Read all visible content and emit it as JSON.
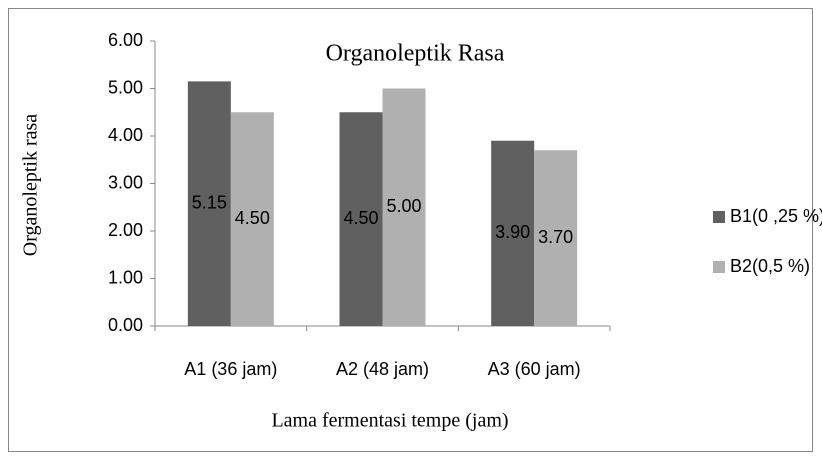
{
  "chart_data": {
    "type": "bar",
    "title": "Organoleptik Rasa",
    "x_label": "Lama fermentasi tempe (jam)",
    "y_label": "Organoleptik rasa",
    "categories": [
      "A1 (36 jam)",
      "A2 (48 jam)",
      "A3 (60 jam)"
    ],
    "series": [
      {
        "name": "B1(0 ,25 %)",
        "color": "#606060",
        "values": [
          5.15,
          4.5,
          3.9
        ],
        "value_labels": [
          "5.15",
          "4.50",
          "3.90"
        ]
      },
      {
        "name": "B2(0,5 %)",
        "color": "#b0b0b0",
        "values": [
          4.5,
          5.0,
          3.7
        ],
        "value_labels": [
          "4.50",
          "5.00",
          "3.70"
        ]
      }
    ],
    "ylim": [
      0,
      6
    ],
    "yticks": [
      {
        "value": 0,
        "label": "0.00"
      },
      {
        "value": 1,
        "label": "1.00"
      },
      {
        "value": 2,
        "label": "2.00"
      },
      {
        "value": 3,
        "label": "3.00"
      },
      {
        "value": 4,
        "label": "4.00"
      },
      {
        "value": 5,
        "label": "5.00"
      },
      {
        "value": 6,
        "label": "6.00"
      }
    ],
    "legend": "right"
  }
}
